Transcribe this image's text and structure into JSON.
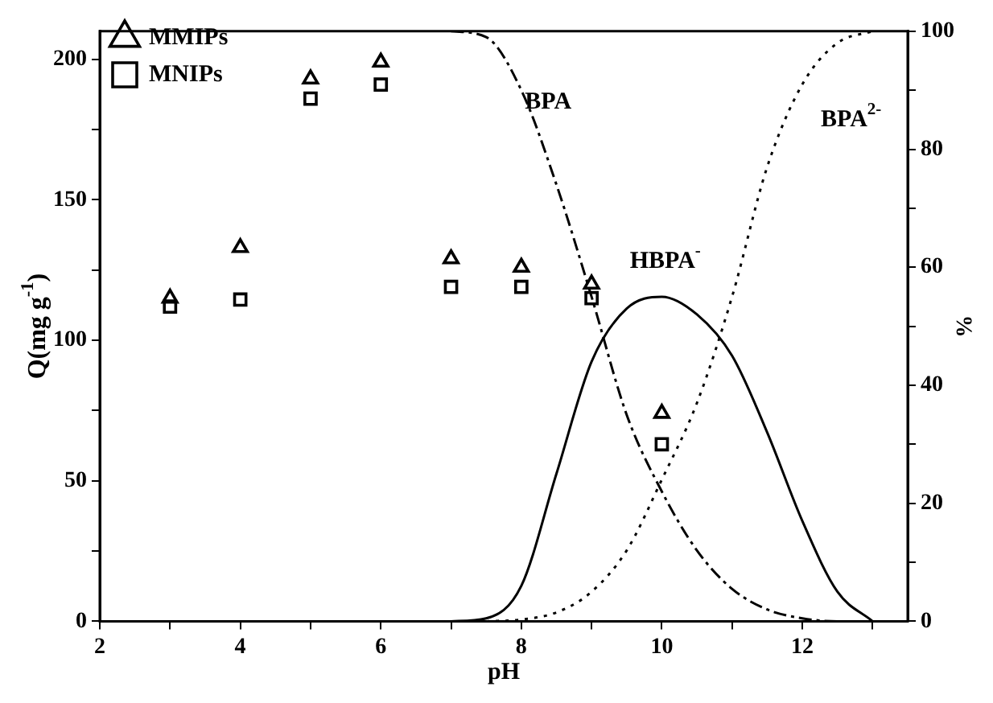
{
  "chart_data": {
    "type": "scatter",
    "xlabel": "pH",
    "ylabel": "Q(mg g$^{-1}$)",
    "y2label": "%",
    "xlim": [
      2,
      13.5
    ],
    "xticks": [
      2,
      {
        "value": 3,
        "label": null
      },
      4,
      {
        "value": 5,
        "label": null
      },
      6,
      {
        "value": 7,
        "label": null
      },
      8,
      {
        "value": 9,
        "label": null
      },
      10,
      {
        "value": 11,
        "label": null
      },
      12,
      {
        "value": 13,
        "label": null
      }
    ],
    "ylim": [
      0,
      210
    ],
    "yticks": [
      0,
      {
        "value": 25,
        "label": null
      },
      50,
      {
        "value": 75,
        "label": null
      },
      100,
      {
        "value": 125,
        "label": null
      },
      150,
      {
        "value": 175,
        "label": null
      },
      200
    ],
    "y2lim": [
      0,
      100
    ],
    "y2ticks": [
      0,
      {
        "value": 10,
        "label": null
      },
      20,
      {
        "value": 30,
        "label": null
      },
      40,
      {
        "value": 50,
        "label": null
      },
      60,
      {
        "value": 70,
        "label": null
      },
      80,
      {
        "value": 90,
        "label": null
      },
      100
    ],
    "x": [
      3,
      4,
      5,
      6,
      7,
      8,
      9,
      10
    ],
    "series": [
      {
        "name": "MMIPs",
        "type": "scatter",
        "marker": "triangle",
        "color": "#000000",
        "values": [
          115,
          133,
          193,
          199,
          129,
          126,
          120,
          74
        ]
      },
      {
        "name": "MNIPs",
        "type": "scatter",
        "marker": "square",
        "color": "#000000",
        "values": [
          112,
          114.5,
          186,
          191,
          119,
          119,
          115,
          63
        ]
      },
      {
        "type": "line",
        "axis": "y2",
        "line_style": "dashed",
        "marker": "none",
        "color": "#000000",
        "x": [
          7,
          7.5,
          8,
          8.5,
          9,
          9.5,
          10,
          10.5,
          11,
          11.5,
          12,
          12.5,
          13
        ],
        "values": [
          100,
          99,
          90,
          74,
          55,
          35,
          22,
          12,
          5.5,
          2,
          0.5,
          0,
          0
        ]
      },
      {
        "type": "line",
        "axis": "y2",
        "line_style": "solid",
        "marker": "none",
        "color": "#000000",
        "x": [
          7,
          7.5,
          8,
          8.5,
          9,
          9.5,
          10,
          10.5,
          11,
          11.5,
          12,
          12.5,
          13
        ],
        "values": [
          0,
          0.5,
          6,
          25,
          44,
          53,
          55,
          52,
          45,
          32,
          17,
          5,
          0
        ]
      },
      {
        "type": "line",
        "axis": "y2",
        "line_style": "dotted",
        "marker": "none",
        "color": "#000000",
        "x": [
          7.5,
          8,
          8.5,
          9,
          9.5,
          10,
          10.5,
          11,
          11.5,
          12,
          12.5,
          13
        ],
        "values": [
          0,
          0.3,
          1.5,
          5,
          12,
          24,
          37,
          55,
          77,
          91,
          98,
          100
        ]
      }
    ],
    "annotations": [
      "BPA",
      "HBPA$^{-}$",
      "BPA$^{2-}$"
    ],
    "grid": false,
    "legend": "top left"
  }
}
